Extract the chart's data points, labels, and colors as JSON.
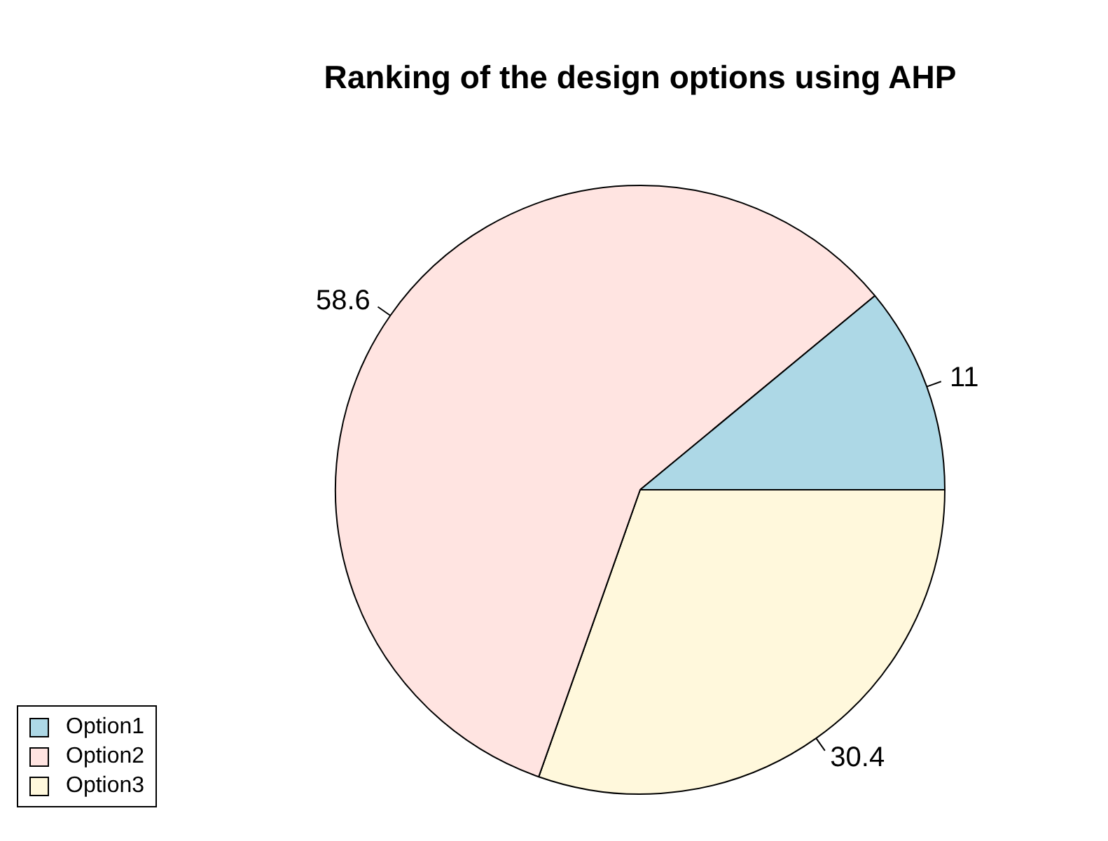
{
  "chart_data": {
    "type": "pie",
    "title": "Ranking of the design options using AHP",
    "categories": [
      "Option1",
      "Option2",
      "Option3"
    ],
    "values": [
      11,
      58.6,
      30.4
    ],
    "colors": [
      "#add8e6",
      "#ffe4e1",
      "#fff8dc"
    ],
    "data_labels": true,
    "legend": "bottom left"
  }
}
